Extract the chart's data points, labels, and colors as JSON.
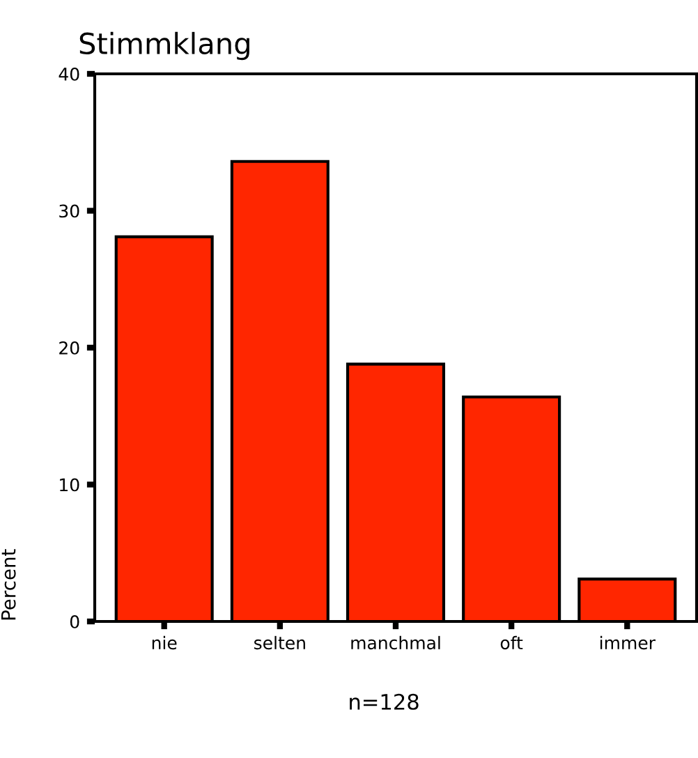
{
  "chart_data": {
    "type": "bar",
    "title": "Stimmklang",
    "ylabel": "Percent",
    "categories": [
      "nie",
      "selten",
      "manchmal",
      "oft",
      "immer"
    ],
    "values": [
      28.1,
      33.6,
      18.8,
      16.4,
      3.1
    ],
    "color": "#ff2600",
    "ylim": [
      0,
      40
    ],
    "yticks": [
      0,
      10,
      20,
      30,
      40
    ],
    "grid": false,
    "annotations": [
      "n=128"
    ]
  }
}
